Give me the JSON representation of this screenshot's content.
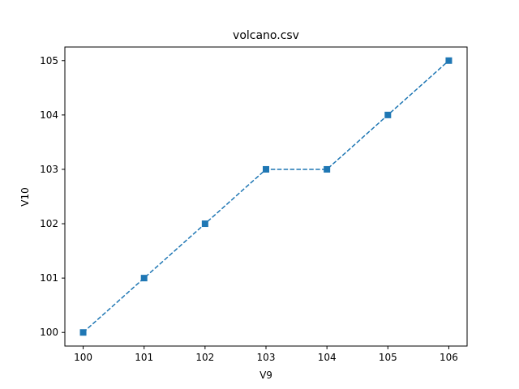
{
  "chart_data": {
    "type": "line",
    "title": "volcano.csv",
    "xlabel": "V9",
    "ylabel": "V10",
    "x": [
      100,
      101,
      102,
      103,
      104,
      105,
      106
    ],
    "series": [
      {
        "values": [
          100,
          101,
          102,
          103,
          103,
          104,
          105
        ],
        "color": "#1f77b4",
        "line_style": "dashed",
        "marker": "square"
      }
    ],
    "xlim": [
      99.7,
      106.3
    ],
    "ylim": [
      99.75,
      105.25
    ],
    "xticks": [
      "100",
      "101",
      "102",
      "103",
      "104",
      "105",
      "106"
    ],
    "yticks": [
      "100",
      "101",
      "102",
      "103",
      "104",
      "105"
    ],
    "grid": false,
    "legend": "none"
  }
}
